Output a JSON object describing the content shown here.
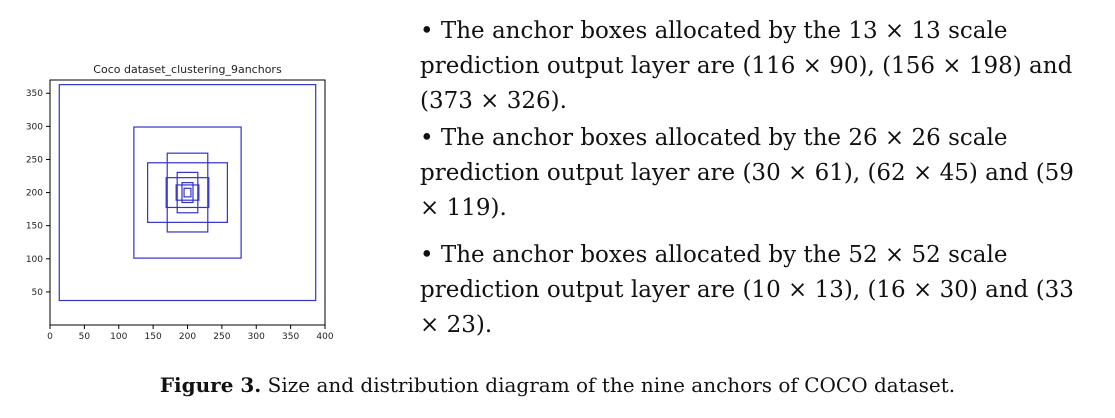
{
  "chart_data": {
    "type": "rectangles",
    "title": "Coco dataset_clustering_9anchors",
    "xlim": [
      0,
      400
    ],
    "ylim": [
      0,
      370
    ],
    "xticks": [
      0,
      50,
      100,
      150,
      200,
      250,
      300,
      350,
      400
    ],
    "yticks": [
      50,
      100,
      150,
      200,
      250,
      300,
      350
    ],
    "xtick_labels": [
      "0",
      "50",
      "100",
      "150",
      "200",
      "250",
      "300",
      "350",
      "400"
    ],
    "ytick_labels": [
      "50",
      "100",
      "150",
      "200",
      "250",
      "300",
      "350"
    ],
    "center": [
      200,
      200
    ],
    "boxes": [
      {
        "w": 10,
        "h": 13
      },
      {
        "w": 16,
        "h": 30
      },
      {
        "w": 33,
        "h": 23
      },
      {
        "w": 30,
        "h": 61
      },
      {
        "w": 62,
        "h": 45
      },
      {
        "w": 59,
        "h": 119
      },
      {
        "w": 116,
        "h": 90
      },
      {
        "w": 156,
        "h": 198
      },
      {
        "w": 373,
        "h": 326
      }
    ],
    "color": "#3333cc"
  },
  "bullets": [
    "• The anchor boxes allocated by the 13 × 13 scale prediction output layer are (116 × 90), (156 × 198) and (373 × 326).",
    "• The anchor boxes allocated by the 26 × 26 scale prediction output layer are (30 × 61), (62 × 45) and (59 × 119).",
    "• The anchor boxes allocated by the 52 × 52 scale prediction output layer are (10 × 13), (16 × 30) and (33 × 23)."
  ],
  "caption": {
    "label": "Figure 3.",
    "text": " Size and distribution diagram of the nine anchors of COCO dataset."
  }
}
